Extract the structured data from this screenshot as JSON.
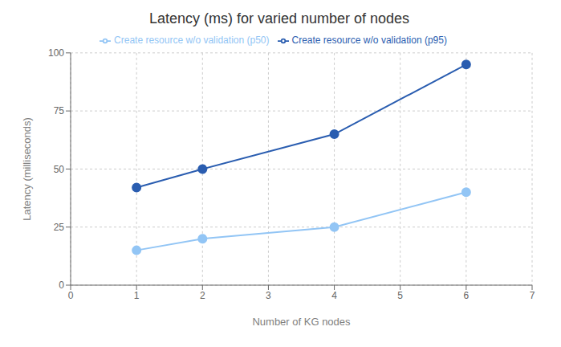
{
  "chart_data": {
    "type": "line",
    "title": "Latency (ms) for varied number of nodes",
    "xlabel": "Number of KG nodes",
    "ylabel": "Latency (milliseconds)",
    "x": [
      1,
      2,
      4,
      6
    ],
    "series": [
      {
        "name": "Create resource w/o validation (p50)",
        "color": "#92C5F5",
        "values": [
          15,
          20,
          25,
          40
        ]
      },
      {
        "name": "Create resource w/o validation (p95)",
        "color": "#2A5DB0",
        "values": [
          42,
          50,
          65,
          95
        ]
      }
    ],
    "xlim": [
      0,
      7
    ],
    "xticks": [
      0,
      1,
      2,
      3,
      4,
      5,
      6,
      7
    ],
    "ylim": [
      0,
      100
    ],
    "yticks": [
      0,
      25,
      50,
      75,
      100
    ],
    "grid": true,
    "legend": "top",
    "marker": "circle"
  }
}
